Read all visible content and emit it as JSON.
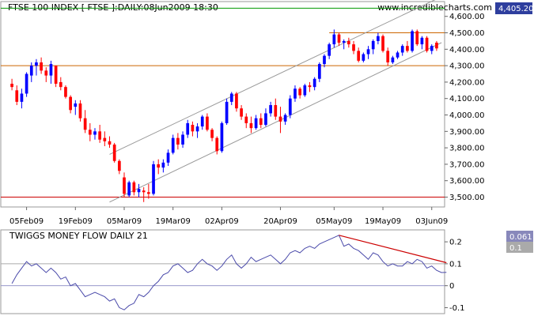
{
  "chart_data": [
    {
      "type": "candlestick",
      "title": "FTSE 100 INDEX [ FTSE ]:DAILY:08Jun2009 18:30",
      "watermark": "www.incrediblecharts.com",
      "last_value_badge": "4,405.20",
      "ylim": [
        3440,
        4690
      ],
      "yticks": [
        "4,600.00",
        "4,500.00",
        "4,400.00",
        "4,300.00",
        "4,200.00",
        "4,100.00",
        "4,000.00",
        "3,900.00",
        "3,800.00",
        "3,700.00",
        "3,600.00",
        "3,500.00"
      ],
      "ytick_values": [
        4600,
        4500,
        4400,
        4300,
        4200,
        4100,
        4000,
        3900,
        3800,
        3700,
        3600,
        3500
      ],
      "xtick_labels": [
        "05Feb09",
        "19Feb09",
        "05Mar09",
        "19Mar09",
        "02Apr09",
        "20Apr09",
        "05May09",
        "19May09",
        "03Jun09"
      ],
      "xtick_index": [
        3,
        13,
        23,
        33,
        43,
        55,
        66,
        76,
        86
      ],
      "colors": {
        "up": "#0000ff",
        "down": "#ff0000",
        "support": "#cc6600",
        "bottom_line": "#cc0000",
        "top_line": "#009900",
        "channel": "#999999"
      },
      "levels": {
        "support": 4300,
        "resistance": 4500,
        "bottom": 3500,
        "top": 4650
      },
      "channel": {
        "lower": [
          [
            20,
            3470
          ],
          [
            88,
            4440
          ]
        ],
        "upper": [
          [
            20,
            3760
          ],
          [
            88,
            4720
          ]
        ]
      },
      "ohlc": [
        [
          4190,
          4220,
          4150,
          4170
        ],
        [
          4150,
          4180,
          4060,
          4080
        ],
        [
          4080,
          4160,
          4040,
          4130
        ],
        [
          4130,
          4260,
          4110,
          4250
        ],
        [
          4240,
          4320,
          4200,
          4300
        ],
        [
          4300,
          4340,
          4240,
          4320
        ],
        [
          4320,
          4350,
          4250,
          4270
        ],
        [
          4270,
          4290,
          4200,
          4240
        ],
        [
          4240,
          4330,
          4190,
          4310
        ],
        [
          4300,
          4300,
          4170,
          4190
        ],
        [
          4200,
          4230,
          4150,
          4170
        ],
        [
          4170,
          4180,
          4100,
          4110
        ],
        [
          4110,
          4120,
          4010,
          4030
        ],
        [
          4050,
          4090,
          4000,
          4070
        ],
        [
          4070,
          4090,
          3960,
          3980
        ],
        [
          3980,
          4030,
          3890,
          3910
        ],
        [
          3910,
          3950,
          3840,
          3880
        ],
        [
          3880,
          3920,
          3850,
          3900
        ],
        [
          3900,
          3940,
          3830,
          3850
        ],
        [
          3860,
          3900,
          3810,
          3840
        ],
        [
          3840,
          3870,
          3800,
          3820
        ],
        [
          3820,
          3830,
          3710,
          3720
        ],
        [
          3720,
          3730,
          3640,
          3660
        ],
        [
          3620,
          3650,
          3500,
          3520
        ],
        [
          3510,
          3600,
          3500,
          3590
        ],
        [
          3590,
          3600,
          3510,
          3530
        ],
        [
          3530,
          3580,
          3500,
          3550
        ],
        [
          3540,
          3560,
          3470,
          3530
        ],
        [
          3530,
          3580,
          3490,
          3520
        ],
        [
          3520,
          3720,
          3510,
          3700
        ],
        [
          3700,
          3730,
          3640,
          3680
        ],
        [
          3680,
          3730,
          3650,
          3710
        ],
        [
          3710,
          3790,
          3690,
          3770
        ],
        [
          3770,
          3880,
          3760,
          3860
        ],
        [
          3860,
          3890,
          3790,
          3820
        ],
        [
          3820,
          3900,
          3800,
          3880
        ],
        [
          3880,
          3970,
          3860,
          3950
        ],
        [
          3940,
          3960,
          3870,
          3900
        ],
        [
          3900,
          3950,
          3860,
          3930
        ],
        [
          3930,
          4000,
          3910,
          3990
        ],
        [
          3990,
          4010,
          3900,
          3910
        ],
        [
          3910,
          3920,
          3840,
          3860
        ],
        [
          3860,
          3870,
          3760,
          3780
        ],
        [
          3780,
          3960,
          3770,
          3950
        ],
        [
          3950,
          4100,
          3940,
          4080
        ],
        [
          4080,
          4140,
          4060,
          4130
        ],
        [
          4130,
          4140,
          4020,
          4040
        ],
        [
          4040,
          4060,
          3970,
          3990
        ],
        [
          3990,
          4010,
          3920,
          3950
        ],
        [
          3950,
          3990,
          3890,
          3920
        ],
        [
          3920,
          4000,
          3910,
          3980
        ],
        [
          3980,
          4010,
          3920,
          3940
        ],
        [
          3940,
          4040,
          3930,
          4010
        ],
        [
          4010,
          4080,
          3990,
          4060
        ],
        [
          4060,
          4100,
          3970,
          3990
        ],
        [
          3990,
          4050,
          3890,
          3960
        ],
        [
          3960,
          4010,
          3940,
          4000
        ],
        [
          4000,
          4120,
          3980,
          4100
        ],
        [
          4100,
          4180,
          4080,
          4160
        ],
        [
          4160,
          4170,
          4100,
          4120
        ],
        [
          4120,
          4190,
          4110,
          4180
        ],
        [
          4180,
          4200,
          4140,
          4170
        ],
        [
          4170,
          4230,
          4150,
          4220
        ],
        [
          4220,
          4320,
          4200,
          4310
        ],
        [
          4310,
          4370,
          4290,
          4360
        ],
        [
          4360,
          4440,
          4340,
          4430
        ],
        [
          4430,
          4520,
          4410,
          4490
        ],
        [
          4490,
          4500,
          4420,
          4440
        ],
        [
          4440,
          4460,
          4400,
          4450
        ],
        [
          4450,
          4470,
          4410,
          4430
        ],
        [
          4430,
          4450,
          4370,
          4390
        ],
        [
          4390,
          4410,
          4320,
          4330
        ],
        [
          4330,
          4380,
          4320,
          4370
        ],
        [
          4370,
          4420,
          4340,
          4400
        ],
        [
          4400,
          4460,
          4370,
          4450
        ],
        [
          4450,
          4500,
          4430,
          4480
        ],
        [
          4480,
          4490,
          4380,
          4390
        ],
        [
          4390,
          4410,
          4300,
          4320
        ],
        [
          4320,
          4360,
          4310,
          4350
        ],
        [
          4350,
          4390,
          4340,
          4380
        ],
        [
          4380,
          4430,
          4360,
          4420
        ],
        [
          4420,
          4450,
          4380,
          4390
        ],
        [
          4390,
          4520,
          4380,
          4510
        ],
        [
          4510,
          4520,
          4420,
          4430
        ],
        [
          4430,
          4480,
          4400,
          4470
        ],
        [
          4470,
          4480,
          4380,
          4390
        ],
        [
          4390,
          4430,
          4370,
          4420
        ],
        [
          4440,
          4450,
          4390,
          4405
        ]
      ]
    },
    {
      "type": "line",
      "title": "TWIGGS MONEY FLOW DAILY 21",
      "last_value_badge": "0.061",
      "signal_badge": "0.1",
      "ylim": [
        -0.12,
        0.24
      ],
      "yticks": [
        "0.2",
        "0.1",
        "0",
        "-0.1"
      ],
      "ytick_values": [
        0.2,
        0.1,
        0,
        -0.1
      ],
      "reference_lines": [
        0.1,
        0
      ],
      "trendline": [
        [
          67,
          0.23
        ],
        [
          89,
          0.105
        ]
      ],
      "values": [
        0.01,
        0.05,
        0.08,
        0.11,
        0.09,
        0.1,
        0.08,
        0.06,
        0.08,
        0.06,
        0.03,
        0.04,
        0.0,
        0.01,
        -0.02,
        -0.05,
        -0.04,
        -0.03,
        -0.04,
        -0.05,
        -0.07,
        -0.06,
        -0.1,
        -0.11,
        -0.09,
        -0.08,
        -0.04,
        -0.05,
        -0.03,
        0.0,
        0.02,
        0.05,
        0.06,
        0.09,
        0.1,
        0.08,
        0.06,
        0.07,
        0.1,
        0.12,
        0.1,
        0.09,
        0.07,
        0.09,
        0.12,
        0.14,
        0.1,
        0.08,
        0.1,
        0.13,
        0.11,
        0.12,
        0.13,
        0.14,
        0.12,
        0.1,
        0.12,
        0.15,
        0.16,
        0.15,
        0.17,
        0.18,
        0.17,
        0.19,
        0.2,
        0.21,
        0.22,
        0.23,
        0.18,
        0.19,
        0.17,
        0.16,
        0.14,
        0.12,
        0.15,
        0.14,
        0.11,
        0.09,
        0.1,
        0.09,
        0.09,
        0.11,
        0.1,
        0.12,
        0.11,
        0.08,
        0.09,
        0.07,
        0.06,
        0.061
      ]
    }
  ]
}
